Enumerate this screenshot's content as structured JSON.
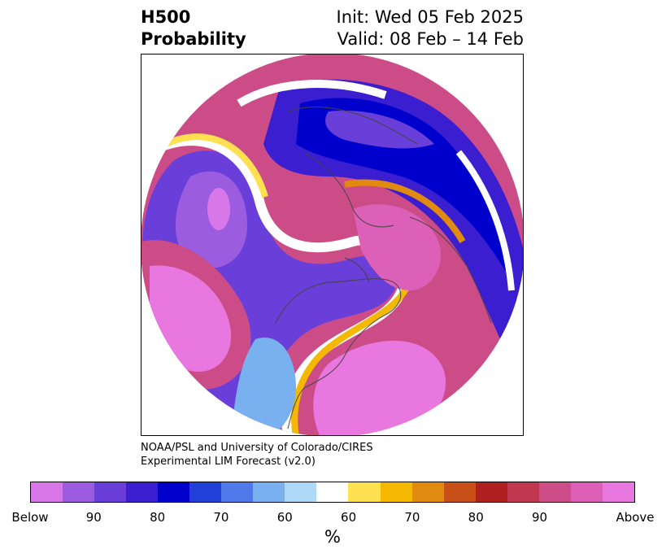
{
  "header": {
    "title_line1": "H500",
    "title_line2": "Probability",
    "init": "Init: Wed 05 Feb 2025",
    "valid": "Valid: 08 Feb – 14 Feb"
  },
  "credit": {
    "line1": "NOAA/PSL and University of Colorado/CIRES",
    "line2": "Experimental LIM Forecast (v2.0)"
  },
  "colorbar": {
    "colors": [
      "#d878e8",
      "#9b5ce0",
      "#6a3ed8",
      "#3a1ed0",
      "#0000cc",
      "#2240d8",
      "#4f78e8",
      "#78b0f0",
      "#aed8f8",
      "#ffffff",
      "#ffe050",
      "#f4b800",
      "#e08a10",
      "#c85018",
      "#b02020",
      "#c03850",
      "#cc4c88",
      "#dc60b8",
      "#e878e0"
    ],
    "ticks": [
      "Below",
      "90",
      "80",
      "70",
      "60",
      "60",
      "70",
      "80",
      "90",
      "Above"
    ],
    "units": "%"
  }
}
